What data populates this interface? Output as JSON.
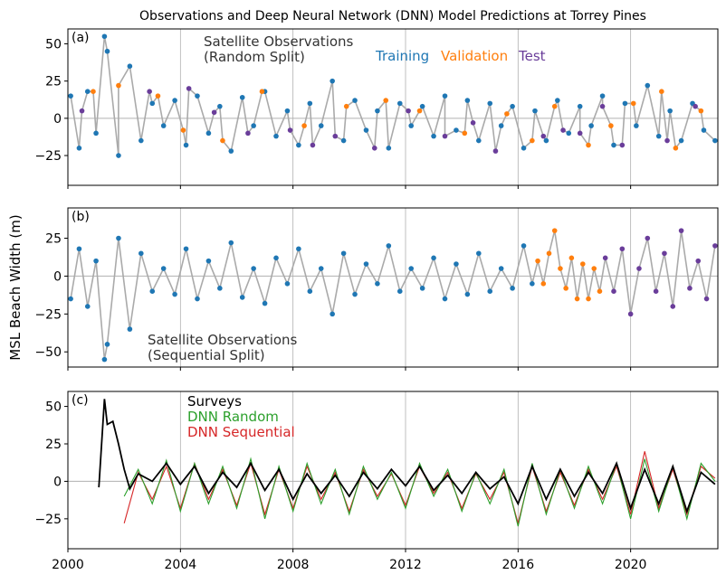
{
  "figure": {
    "title": "Observations and Deep Neural Network (DNN) Model Predictions at Torrey Pines",
    "ylabel": "MSL Beach Width (m)",
    "x_ticks": [
      "2000",
      "2004",
      "2008",
      "2012",
      "2016",
      "2020"
    ]
  },
  "colors": {
    "training": "#1f77b4",
    "validation": "#ff7f0e",
    "test": "#6a3d9a",
    "observation_line": "#aaaaaa",
    "surveys": "#000000",
    "dnn_random": "#2ca02c",
    "dnn_sequential": "#d62728",
    "grid": "#b0b0b0"
  },
  "chart_data": [
    {
      "type": "scatter",
      "panel": "(a)",
      "annotation": [
        "Satellite Observations",
        "(Random Split)"
      ],
      "legend": [
        "Training",
        "Validation",
        "Test"
      ],
      "xlim": [
        2000,
        2023.1
      ],
      "ylim": [
        -45,
        60
      ],
      "yticks": [
        -25,
        0,
        25,
        50
      ],
      "xticks": [
        2000,
        2004,
        2008,
        2012,
        2016,
        2020
      ],
      "grid": "vertical lines at x ticks, horizontal line at y=0",
      "series": [
        {
          "name": "Training",
          "x": [
            2000.1,
            2000.4,
            2000.7,
            2001.0,
            2001.3,
            2001.4,
            2001.8,
            2002.2,
            2002.6,
            2003.0,
            2003.4,
            2003.8,
            2004.2,
            2004.6,
            2005.0,
            2005.4,
            2005.8,
            2006.2,
            2006.6,
            2007.0,
            2007.4,
            2007.8,
            2008.2,
            2008.6,
            2009.0,
            2009.4,
            2009.8,
            2010.2,
            2010.6,
            2011.0,
            2011.4,
            2011.8,
            2012.2,
            2012.6,
            2013.0,
            2013.4,
            2013.8,
            2014.2,
            2014.6,
            2015.0,
            2015.4,
            2015.8,
            2016.2,
            2016.6,
            2017.0,
            2017.4,
            2017.8,
            2018.2,
            2018.6,
            2019.0,
            2019.4,
            2019.8,
            2020.2,
            2020.6,
            2021.0,
            2021.4,
            2021.8,
            2022.2,
            2022.6,
            2023.0
          ],
          "y": [
            15,
            -20,
            18,
            -10,
            55,
            45,
            -25,
            35,
            -15,
            10,
            -5,
            12,
            -18,
            15,
            -10,
            8,
            -22,
            14,
            -5,
            18,
            -12,
            5,
            -18,
            10,
            -5,
            25,
            -15,
            12,
            -8,
            5,
            -20,
            10,
            -5,
            8,
            -12,
            15,
            -8,
            12,
            -15,
            10,
            -5,
            8,
            -20,
            5,
            -15,
            12,
            -10,
            8,
            -5,
            15,
            -18,
            10,
            -5,
            22,
            -12,
            5,
            -15,
            10,
            -8,
            -15
          ]
        },
        {
          "name": "Validation",
          "x": [
            2000.9,
            2001.8,
            2003.2,
            2004.1,
            2005.5,
            2006.9,
            2008.4,
            2009.9,
            2011.3,
            2012.5,
            2014.1,
            2015.6,
            2016.5,
            2017.3,
            2018.5,
            2019.3,
            2020.1,
            2021.1,
            2021.6,
            2022.5
          ],
          "y": [
            18,
            22,
            15,
            -8,
            -15,
            18,
            -5,
            8,
            12,
            5,
            -10,
            3,
            -15,
            8,
            -18,
            -5,
            10,
            18,
            -20,
            5
          ]
        },
        {
          "name": "Test",
          "x": [
            2000.5,
            2002.9,
            2004.3,
            2005.2,
            2006.4,
            2007.9,
            2008.7,
            2009.5,
            2010.9,
            2012.1,
            2013.4,
            2014.4,
            2015.2,
            2016.9,
            2017.6,
            2018.2,
            2019.0,
            2019.7,
            2021.3,
            2022.3
          ],
          "y": [
            5,
            18,
            20,
            4,
            -10,
            -8,
            -18,
            -12,
            -20,
            5,
            -12,
            -3,
            -22,
            -12,
            -8,
            -10,
            8,
            -18,
            -15,
            8
          ]
        }
      ]
    },
    {
      "type": "scatter",
      "panel": "(b)",
      "annotation": [
        "Satellite Observations",
        "(Sequential Split)"
      ],
      "xlim": [
        2000,
        2023.1
      ],
      "ylim": [
        -60,
        45
      ],
      "yticks": [
        -50,
        -25,
        0,
        25
      ],
      "xticks": [
        2000,
        2004,
        2008,
        2012,
        2016,
        2020
      ],
      "grid": "vertical lines at x ticks, horizontal line at y=0",
      "series": [
        {
          "name": "Training",
          "x": [
            2000.1,
            2000.4,
            2000.7,
            2001.0,
            2001.3,
            2001.4,
            2001.8,
            2002.2,
            2002.6,
            2003.0,
            2003.4,
            2003.8,
            2004.2,
            2004.6,
            2005.0,
            2005.4,
            2005.8,
            2006.2,
            2006.6,
            2007.0,
            2007.4,
            2007.8,
            2008.2,
            2008.6,
            2009.0,
            2009.4,
            2009.8,
            2010.2,
            2010.6,
            2011.0,
            2011.4,
            2011.8,
            2012.2,
            2012.6,
            2013.0,
            2013.4,
            2013.8,
            2014.2,
            2014.6,
            2015.0,
            2015.4,
            2015.8,
            2016.2,
            2016.5
          ],
          "y": [
            -15,
            18,
            -20,
            10,
            -55,
            -45,
            25,
            -35,
            15,
            -10,
            5,
            -12,
            18,
            -15,
            10,
            -8,
            22,
            -14,
            5,
            -18,
            12,
            -5,
            18,
            -10,
            5,
            -25,
            15,
            -12,
            8,
            -5,
            20,
            -10,
            5,
            -8,
            12,
            -15,
            8,
            -12,
            15,
            -10,
            5,
            -8,
            20,
            -5
          ]
        },
        {
          "name": "Validation",
          "x": [
            2016.7,
            2016.9,
            2017.1,
            2017.3,
            2017.5,
            2017.7,
            2017.9,
            2018.1,
            2018.3,
            2018.5,
            2018.7,
            2018.9
          ],
          "y": [
            10,
            -5,
            15,
            30,
            5,
            -8,
            12,
            -15,
            8,
            -15,
            5,
            -10
          ]
        },
        {
          "name": "Test",
          "x": [
            2019.1,
            2019.4,
            2019.7,
            2020.0,
            2020.3,
            2020.6,
            2020.9,
            2021.2,
            2021.5,
            2021.8,
            2022.1,
            2022.4,
            2022.7,
            2023.0
          ],
          "y": [
            12,
            -10,
            18,
            -25,
            5,
            25,
            -10,
            15,
            -20,
            30,
            -8,
            10,
            -15,
            20
          ]
        }
      ]
    },
    {
      "type": "line",
      "panel": "(c)",
      "legend": [
        "Surveys",
        "DNN Random",
        "DNN Sequential"
      ],
      "xlim": [
        2000,
        2023.1
      ],
      "ylim": [
        -45,
        60
      ],
      "yticks": [
        -25,
        0,
        25,
        50
      ],
      "xticks": [
        2000,
        2004,
        2008,
        2012,
        2016,
        2020
      ],
      "grid": "vertical lines at x ticks, horizontal line at y=0",
      "series": [
        {
          "name": "Surveys",
          "x": [
            2001.1,
            2001.3,
            2001.4,
            2001.6,
            2001.8,
            2002.0,
            2002.2,
            2002.5,
            2003.0,
            2003.5,
            2004.0,
            2004.5,
            2005.0,
            2005.5,
            2006.0,
            2006.5,
            2007.0,
            2007.5,
            2008.0,
            2008.5,
            2009.0,
            2009.5,
            2010.0,
            2010.5,
            2011.0,
            2011.5,
            2012.0,
            2012.5,
            2013.0,
            2013.5,
            2014.0,
            2014.5,
            2015.0,
            2015.5,
            2016.0,
            2016.5,
            2017.0,
            2017.5,
            2018.0,
            2018.5,
            2019.0,
            2019.5,
            2020.0,
            2020.5,
            2021.0,
            2021.5,
            2022.0,
            2022.5,
            2023.0
          ],
          "y": [
            -4,
            55,
            38,
            40,
            25,
            8,
            -5,
            5,
            0,
            12,
            -2,
            10,
            -8,
            6,
            -4,
            12,
            -6,
            8,
            -12,
            5,
            -8,
            4,
            -10,
            6,
            -5,
            8,
            -3,
            10,
            -6,
            4,
            -8,
            6,
            -5,
            3,
            -15,
            10,
            -12,
            8,
            -10,
            6,
            -8,
            12,
            -18,
            8,
            -15,
            10,
            -20,
            6,
            -2
          ]
        },
        {
          "name": "DNN Random",
          "x": [
            2002.0,
            2002.5,
            2003.0,
            2003.5,
            2004.0,
            2004.5,
            2005.0,
            2005.5,
            2006.0,
            2006.5,
            2007.0,
            2007.5,
            2008.0,
            2008.5,
            2009.0,
            2009.5,
            2010.0,
            2010.5,
            2011.0,
            2011.5,
            2012.0,
            2012.5,
            2013.0,
            2013.5,
            2014.0,
            2014.5,
            2015.0,
            2015.5,
            2016.0,
            2016.5,
            2017.0,
            2017.5,
            2018.0,
            2018.5,
            2019.0,
            2019.5,
            2020.0,
            2020.5,
            2021.0,
            2021.5,
            2022.0,
            2022.5,
            2023.0
          ],
          "y": [
            -10,
            8,
            -15,
            14,
            -20,
            12,
            -15,
            10,
            -18,
            15,
            -25,
            10,
            -20,
            12,
            -15,
            8,
            -22,
            10,
            -12,
            6,
            -18,
            12,
            -10,
            8,
            -20,
            6,
            -15,
            8,
            -30,
            12,
            -22,
            8,
            -18,
            10,
            -15,
            12,
            -25,
            15,
            -20,
            10,
            -25,
            12,
            0
          ]
        },
        {
          "name": "DNN Sequential",
          "x": [
            2002.0,
            2002.5,
            2003.0,
            2003.5,
            2004.0,
            2004.5,
            2005.0,
            2005.5,
            2006.0,
            2006.5,
            2007.0,
            2007.5,
            2008.0,
            2008.5,
            2009.0,
            2009.5,
            2010.0,
            2010.5,
            2011.0,
            2011.5,
            2012.0,
            2012.5,
            2013.0,
            2013.5,
            2014.0,
            2014.5,
            2015.0,
            2015.5,
            2016.0,
            2016.5,
            2017.0,
            2017.5,
            2018.0,
            2018.5,
            2019.0,
            2019.5,
            2020.0,
            2020.5,
            2021.0,
            2021.5,
            2022.0,
            2022.5,
            2023.0
          ],
          "y": [
            -28,
            6,
            -12,
            10,
            -18,
            12,
            -12,
            8,
            -16,
            12,
            -22,
            8,
            -18,
            10,
            -12,
            6,
            -20,
            8,
            -10,
            5,
            -16,
            10,
            -8,
            6,
            -18,
            5,
            -12,
            6,
            -28,
            10,
            -20,
            6,
            -16,
            8,
            -12,
            10,
            -22,
            20,
            -18,
            8,
            -22,
            10,
            2
          ]
        }
      ]
    }
  ]
}
